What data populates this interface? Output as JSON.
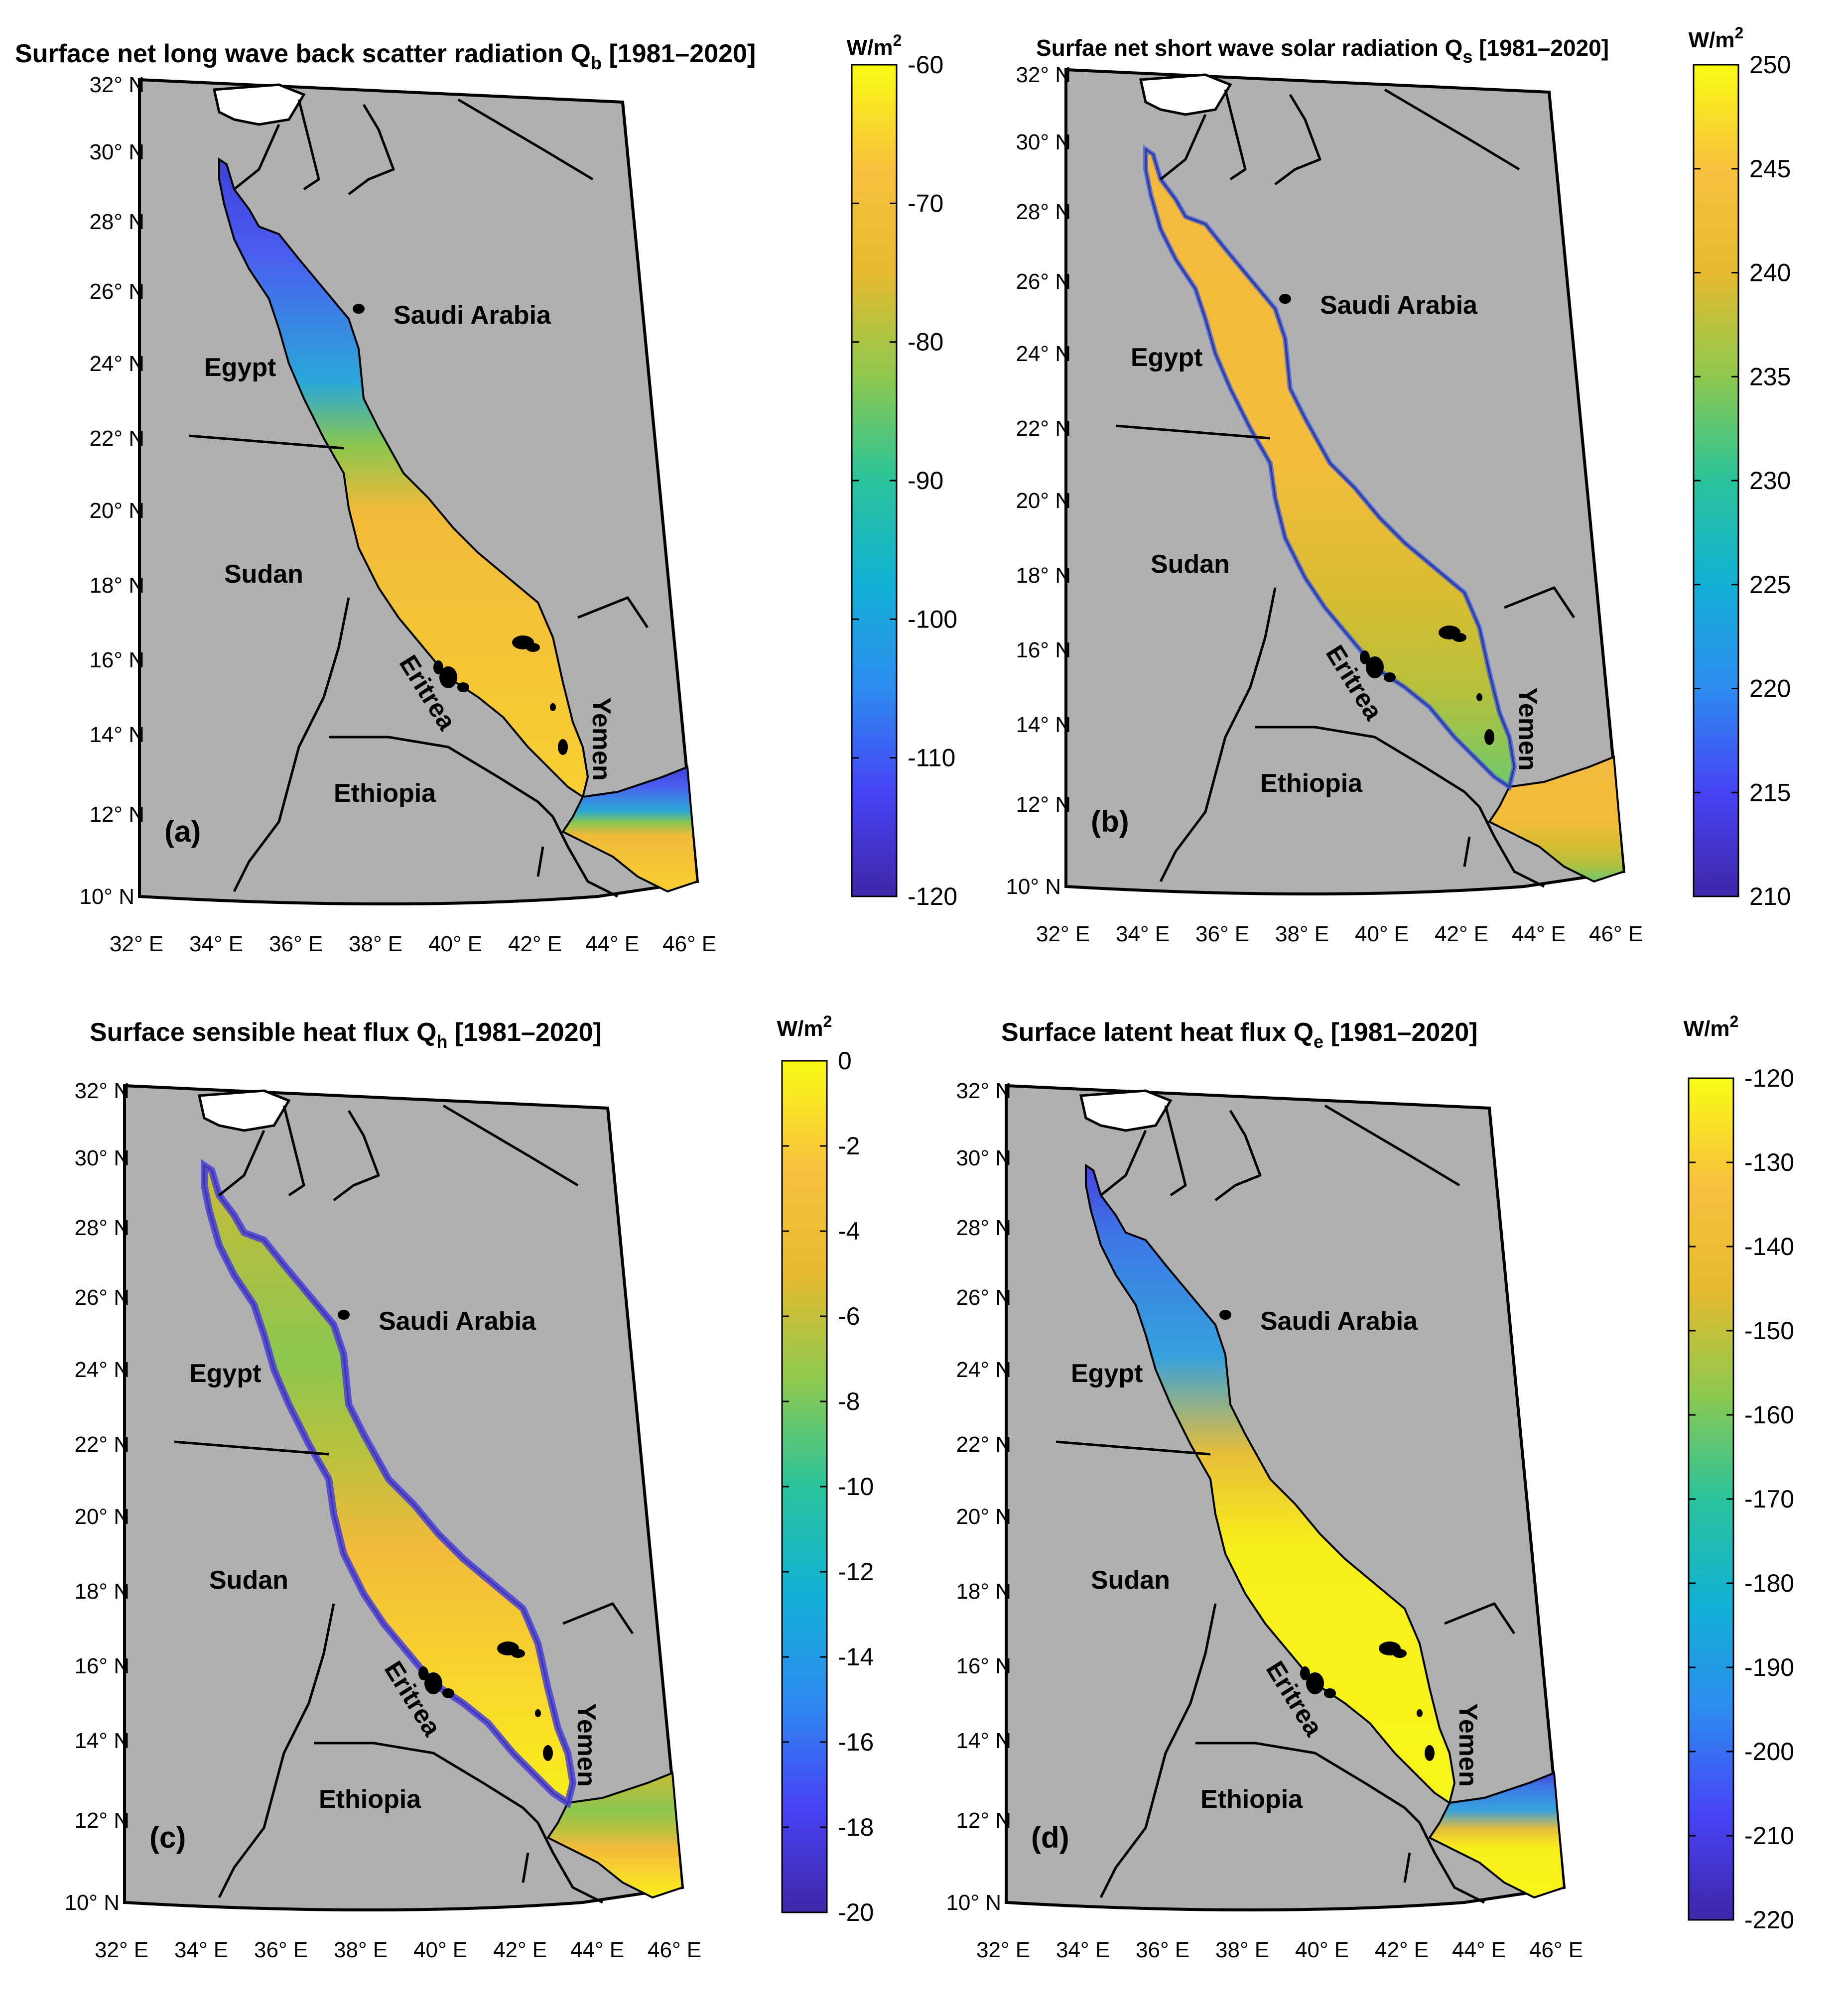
{
  "unit": "W/m",
  "unit_sup": "2",
  "country_names": [
    "Saudi Arabia",
    "Egypt",
    "Sudan",
    "Eritrea",
    "Yemen",
    "Ethiopia"
  ],
  "latitude_labels": [
    "32",
    "30",
    "28",
    "26",
    "24",
    "22",
    "20",
    "18",
    "16",
    "14",
    "12",
    "10"
  ],
  "lat_suffix": "N",
  "longitude_labels": [
    "32",
    "34",
    "36",
    "38",
    "40",
    "42",
    "44",
    "46"
  ],
  "lon_suffix": "E",
  "deg": "°",
  "colors": {
    "land": "#b0b0b0",
    "border": "#000000",
    "colormap": [
      "#3e26a8",
      "#4743f5",
      "#2d8cf0",
      "#12b0d5",
      "#2ac39b",
      "#8dc94e",
      "#e7ba2f",
      "#f9c13e",
      "#f9fb15"
    ]
  },
  "panels": [
    {
      "id": "a",
      "label": "(a)",
      "title_main": "Surface net long wave back scatter radiation Q",
      "title_sub": "b",
      "title_tail": " [1981–2020]",
      "colorbar": {
        "min": -120,
        "max": -60,
        "ticks": [
          "-60",
          "-70",
          "-80",
          "-90",
          "-100",
          "-110",
          "-120"
        ]
      },
      "sea_pattern": "north-low"
    },
    {
      "id": "b",
      "label": "(b)",
      "title_main": "Surfae net short wave solar radiation Q",
      "title_sub": "s",
      "title_tail": " [1981–2020]",
      "colorbar": {
        "min": 210,
        "max": 250,
        "ticks": [
          "250",
          "245",
          "240",
          "235",
          "230",
          "225",
          "220",
          "215",
          "210"
        ]
      },
      "sea_pattern": "uniform-high"
    },
    {
      "id": "c",
      "label": "(c)",
      "title_main": "Surface sensible heat flux Q",
      "title_sub": "h",
      "title_tail": " [1981–2020]",
      "colorbar": {
        "min": -20,
        "max": 0,
        "ticks": [
          "0",
          "-2",
          "-4",
          "-6",
          "-8",
          "-10",
          "-12",
          "-14",
          "-16",
          "-18",
          "-20"
        ]
      },
      "sea_pattern": "south-high"
    },
    {
      "id": "d",
      "label": "(d)",
      "title_main": "Surface latent heat flux Q",
      "title_sub": "e",
      "title_tail": " [1981–2020]",
      "colorbar": {
        "min": -220,
        "max": -120,
        "ticks": [
          "-120",
          "-130",
          "-140",
          "-150",
          "-160",
          "-170",
          "-180",
          "-190",
          "-200",
          "-210",
          "-220"
        ]
      },
      "sea_pattern": "north-low-strong"
    }
  ]
}
